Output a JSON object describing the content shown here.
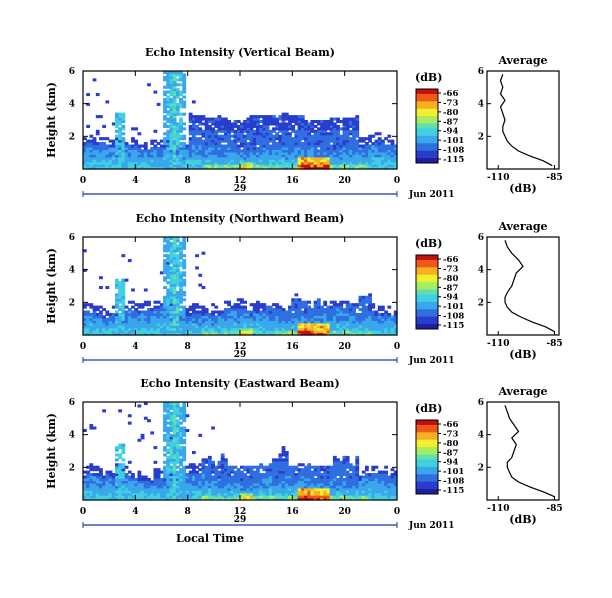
{
  "chart_data": [
    {
      "type": "heatmap",
      "title": "Echo Intensity (Vertical Beam)",
      "ylabel": "Height (km)",
      "yticks": [
        "2",
        "4",
        "6"
      ],
      "ylim": [
        0,
        6
      ],
      "xticks": [
        "0",
        "4",
        "8",
        "12",
        "16",
        "20",
        "0"
      ],
      "xlim": [
        0,
        24
      ],
      "date_label": "29",
      "date_suffix": "Jun 2011",
      "colorbar": {
        "unit": "(dB)",
        "labels": [
          "-66",
          "-73",
          "-80",
          "-87",
          "-94",
          "-101",
          "-108",
          "-115"
        ]
      },
      "profile": {
        "title": "Average",
        "xlabel": "(dB)",
        "xticks": [
          "-110",
          "-85"
        ],
        "yticks": [
          "2",
          "4",
          "6"
        ],
        "height_km": [
          0.2,
          0.5,
          0.8,
          1.1,
          1.4,
          1.7,
          2.0,
          2.3,
          2.6,
          3.0,
          3.4,
          3.8,
          4.2,
          4.6,
          5.0,
          5.4,
          5.8
        ],
        "mean_db": [
          -86,
          -90,
          -96,
          -101,
          -104,
          -106,
          -107,
          -108,
          -108,
          -107,
          -108,
          -109,
          -107,
          -109,
          -108,
          -109,
          -108
        ]
      }
    },
    {
      "type": "heatmap",
      "title": "Echo Intensity (Northward Beam)",
      "ylabel": "Height (km)",
      "yticks": [
        "2",
        "4",
        "6"
      ],
      "ylim": [
        0,
        6
      ],
      "xticks": [
        "0",
        "4",
        "8",
        "12",
        "16",
        "20",
        "0"
      ],
      "xlim": [
        0,
        24
      ],
      "date_label": "29",
      "date_suffix": "Jun 2011",
      "colorbar": {
        "unit": "(dB)",
        "labels": [
          "-66",
          "-73",
          "-80",
          "-87",
          "-94",
          "-101",
          "-108",
          "-115"
        ]
      },
      "profile": {
        "title": "Average",
        "xlabel": "(dB)",
        "xticks": [
          "-110",
          "-85"
        ],
        "yticks": [
          "2",
          "4",
          "6"
        ],
        "height_km": [
          0.2,
          0.5,
          0.8,
          1.1,
          1.4,
          1.7,
          2.0,
          2.3,
          2.6,
          3.0,
          3.4,
          3.8,
          4.2,
          4.6,
          5.0,
          5.4,
          5.8
        ],
        "mean_db": [
          -85,
          -89,
          -95,
          -100,
          -104,
          -106,
          -107,
          -107,
          -106,
          -104,
          -103,
          -102,
          -99,
          -101,
          -104,
          -106,
          -107
        ]
      }
    },
    {
      "type": "heatmap",
      "title": "Echo Intensity (Eastward Beam)",
      "ylabel": "Height (km)",
      "yticks": [
        "2",
        "4",
        "6"
      ],
      "ylim": [
        0,
        6
      ],
      "xticks": [
        "0",
        "4",
        "8",
        "12",
        "16",
        "20",
        "0"
      ],
      "xlim": [
        0,
        24
      ],
      "date_label": "29",
      "date_suffix": "Jun 2011",
      "xlabel": "Local Time",
      "colorbar": {
        "unit": "(dB)",
        "labels": [
          "-66",
          "-73",
          "-80",
          "-87",
          "-94",
          "-101",
          "-108",
          "-115"
        ]
      },
      "profile": {
        "title": "Average",
        "xlabel": "(dB)",
        "xticks": [
          "-110",
          "-85"
        ],
        "yticks": [
          "2",
          "4",
          "6"
        ],
        "height_km": [
          0.2,
          0.5,
          0.8,
          1.1,
          1.4,
          1.7,
          2.0,
          2.3,
          2.6,
          3.0,
          3.4,
          3.8,
          4.2,
          4.6,
          5.0,
          5.4,
          5.8
        ],
        "mean_db": [
          -85,
          -90,
          -96,
          -101,
          -104,
          -105,
          -106,
          -106,
          -104,
          -103,
          -102,
          -104,
          -101,
          -103,
          -105,
          -106,
          -107
        ]
      }
    }
  ],
  "colors": {
    "scale": [
      "#1e1ea0",
      "#2a3ccc",
      "#2f6fe0",
      "#3aa6ec",
      "#40d0e0",
      "#5fe0b0",
      "#a8ec60",
      "#f0f030",
      "#f8b020",
      "#f05818",
      "#c01010"
    ],
    "axis": "#000000",
    "date_bar": "#2233aa"
  }
}
